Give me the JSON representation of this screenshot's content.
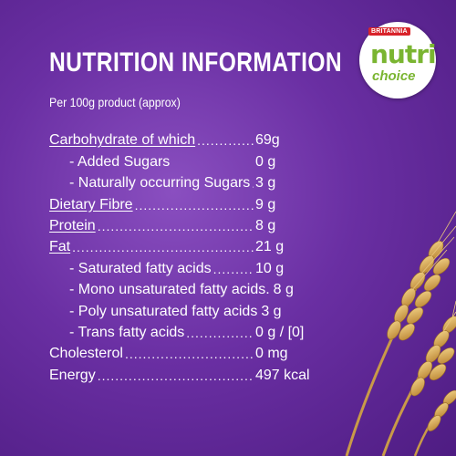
{
  "title": "NUTRITION INFORMATION",
  "subtitle": "Per 100g product (approx)",
  "rows": [
    {
      "label": "Carbohydrate of which",
      "value": "69g"
    },
    {
      "label": "- Added Sugars",
      "value": "0 g"
    },
    {
      "label": "- Naturally occurring Sugars",
      "value": "3 g"
    },
    {
      "label": "Dietary Fibre",
      "value": "9 g"
    },
    {
      "label": "Protein",
      "value": "8 g"
    },
    {
      "label": "Fat",
      "value": "21 g"
    },
    {
      "label": "- Saturated fatty acids",
      "value": "10 g"
    },
    {
      "label": "- Mono unsaturated fatty acids.",
      "value": "8 g"
    },
    {
      "label": "- Poly unsaturated fatty acids",
      "value": "3 g"
    },
    {
      "label": "- Trans fatty acids",
      "value": "0 g / [0]"
    },
    {
      "label": "Cholesterol",
      "value": "0 mg"
    },
    {
      "label": "Energy",
      "value": "497 kcal"
    }
  ],
  "logo": {
    "brand": "BRITANNIA",
    "name_line1": "nutri",
    "name_line2": "choice"
  },
  "colors": {
    "background": "#6a2fa3",
    "text": "#ffffff",
    "logo_red": "#d8232a",
    "logo_green": "#7ab531"
  }
}
